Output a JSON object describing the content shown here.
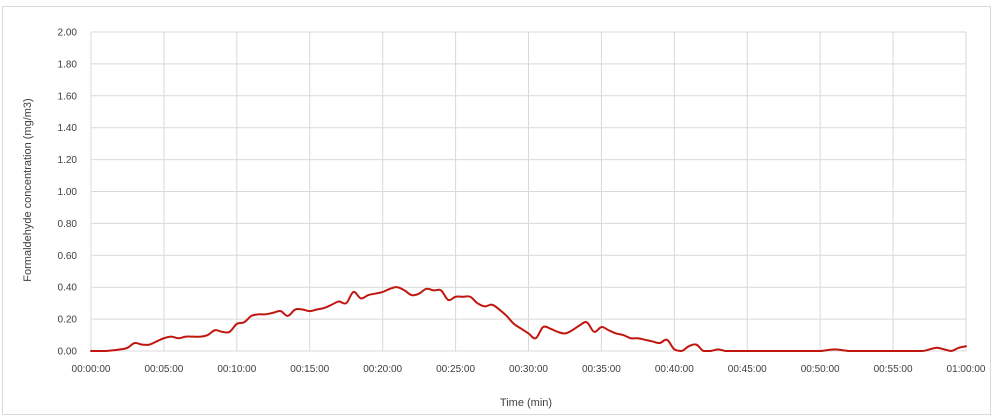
{
  "chart_data": {
    "type": "line",
    "title": "",
    "xlabel": "Time (min)",
    "ylabel": "Formaldehyde concentration (mg/m3)",
    "ylim": [
      0,
      2.0
    ],
    "xlim_minutes": [
      0,
      60
    ],
    "grid": true,
    "legend": "none",
    "y_ticks": [
      "0.00",
      "0.20",
      "0.40",
      "0.60",
      "0.80",
      "1.00",
      "1.20",
      "1.40",
      "1.60",
      "1.80",
      "2.00"
    ],
    "x_ticks": [
      "00:00:00",
      "00:05:00",
      "00:10:00",
      "00:15:00",
      "00:20:00",
      "00:25:00",
      "00:30:00",
      "00:35:00",
      "00:40:00",
      "00:45:00",
      "00:50:00",
      "00:55:00",
      "01:00:00"
    ],
    "line_color": "#c0160e",
    "series": [
      {
        "x_minutes": [
          0,
          1,
          2,
          2.5,
          3,
          3.5,
          4,
          4.5,
          5,
          5.5,
          6,
          6.5,
          7,
          7.5,
          8,
          8.5,
          9,
          9.5,
          10,
          10.5,
          11,
          11.5,
          12,
          12.5,
          13,
          13.5,
          14,
          14.5,
          15,
          15.5,
          16,
          16.5,
          17,
          17.5,
          18,
          18.5,
          19,
          19.5,
          20,
          20.5,
          21,
          21.5,
          22,
          22.5,
          23,
          23.5,
          24,
          24.5,
          25,
          25.5,
          26,
          26.5,
          27,
          27.5,
          28,
          28.5,
          29,
          29.5,
          30,
          30.5,
          31,
          31.5,
          32,
          32.5,
          33,
          33.5,
          34,
          34.5,
          35,
          35.5,
          36,
          36.5,
          37,
          37.5,
          38,
          38.5,
          39,
          39.5,
          40,
          40.5,
          41,
          41.5,
          42,
          42.5,
          43,
          43.5,
          44,
          44.5,
          45,
          46,
          47,
          48,
          49,
          50,
          51,
          52,
          53,
          54,
          55,
          56,
          57,
          57.5,
          58,
          58.5,
          59,
          59.5,
          60
        ],
        "values": [
          0,
          0,
          0.01,
          0.02,
          0.05,
          0.04,
          0.04,
          0.06,
          0.08,
          0.09,
          0.08,
          0.09,
          0.09,
          0.09,
          0.1,
          0.13,
          0.12,
          0.12,
          0.17,
          0.18,
          0.22,
          0.23,
          0.23,
          0.24,
          0.25,
          0.22,
          0.26,
          0.26,
          0.25,
          0.26,
          0.27,
          0.29,
          0.31,
          0.3,
          0.37,
          0.33,
          0.35,
          0.36,
          0.37,
          0.39,
          0.4,
          0.38,
          0.35,
          0.36,
          0.39,
          0.38,
          0.38,
          0.32,
          0.34,
          0.34,
          0.34,
          0.3,
          0.28,
          0.29,
          0.26,
          0.22,
          0.17,
          0.14,
          0.11,
          0.08,
          0.15,
          0.14,
          0.12,
          0.11,
          0.13,
          0.16,
          0.18,
          0.12,
          0.15,
          0.13,
          0.11,
          0.1,
          0.08,
          0.08,
          0.07,
          0.06,
          0.05,
          0.07,
          0.01,
          0.0,
          0.03,
          0.04,
          0.0,
          0.0,
          0.01,
          0.0,
          0.0,
          0.0,
          0.0,
          0.0,
          0.0,
          0.0,
          0.0,
          0.0,
          0.01,
          0.0,
          0.0,
          0.0,
          0.0,
          0.0,
          0.0,
          0.01,
          0.02,
          0.01,
          0.0,
          0.02,
          0.03
        ]
      }
    ]
  }
}
